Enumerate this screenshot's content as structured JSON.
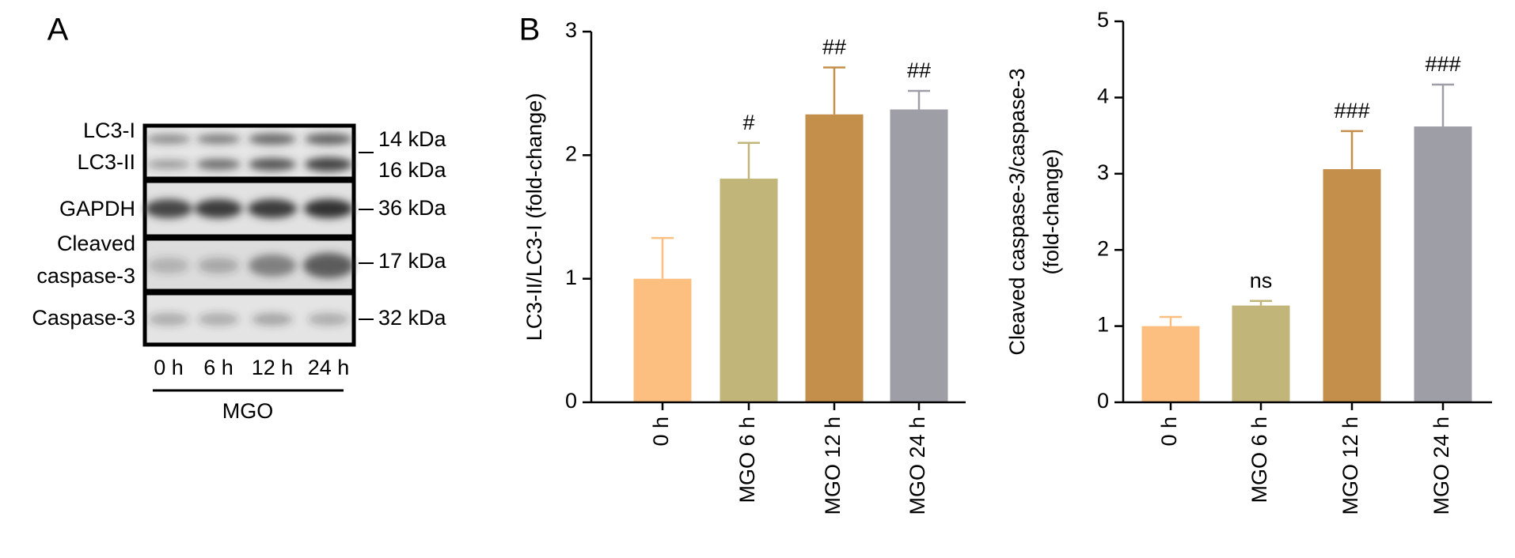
{
  "panel_labels": [
    "A",
    "B"
  ],
  "blot": {
    "left_labels": [
      "LC3-I",
      "LC3-II",
      "GAPDH",
      "Cleaved",
      "caspase-3",
      "Caspase-3"
    ],
    "right_labels": [
      "14 kDa",
      "16 kDa",
      "36 kDa",
      "17 kDa",
      "32 kDa"
    ],
    "lanes": [
      "0 h",
      "6 h",
      "12 h",
      "24 h"
    ],
    "group": "MGO"
  },
  "chart_data": [
    {
      "type": "bar",
      "ylabel": [
        "LC3-II/LC3-I (fold-change)"
      ],
      "categories": [
        "0 h",
        "MGO 6 h",
        "MGO 12 h",
        "MGO 24 h"
      ],
      "values": [
        1.0,
        1.81,
        2.33,
        2.37
      ],
      "errors": [
        0.33,
        0.29,
        0.38,
        0.15
      ],
      "annotations": [
        null,
        "#",
        "##",
        "##"
      ],
      "colors": [
        "#fdbf80",
        "#c2b57a",
        "#c48f4a",
        "#9e9ea6"
      ],
      "ylim": [
        0,
        3
      ],
      "yticks": [
        0,
        1,
        2,
        3
      ]
    },
    {
      "type": "bar",
      "ylabel": [
        "Cleaved caspase-3/caspase-3",
        "(fold-change)"
      ],
      "categories": [
        "0 h",
        "MGO 6 h",
        "MGO 12 h",
        "MGO 24 h"
      ],
      "values": [
        1.0,
        1.27,
        3.06,
        3.62
      ],
      "errors": [
        0.12,
        0.06,
        0.5,
        0.55
      ],
      "annotations": [
        null,
        "ns",
        "###",
        "###"
      ],
      "colors": [
        "#fdbf80",
        "#c2b57a",
        "#c48f4a",
        "#9e9ea6"
      ],
      "ylim": [
        0,
        5
      ],
      "yticks": [
        0,
        1,
        2,
        3,
        4,
        5
      ]
    }
  ]
}
